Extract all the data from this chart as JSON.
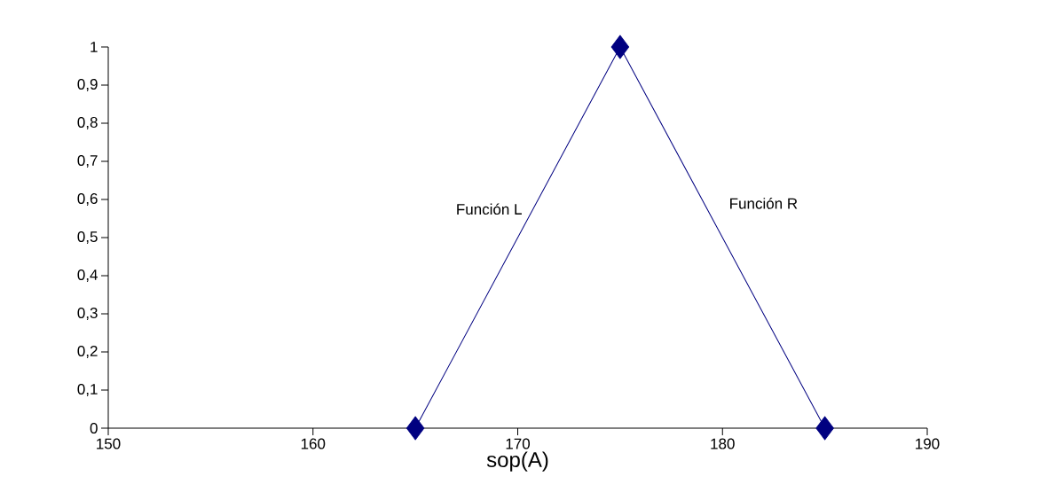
{
  "chart_data": {
    "type": "line",
    "xlabel": "sop(A)",
    "x": [
      165,
      175,
      185
    ],
    "series": [
      {
        "color": "#000080",
        "values": [
          0,
          1,
          0
        ]
      }
    ],
    "xlim": [
      150,
      190
    ],
    "xticks": [
      150,
      160,
      170,
      180,
      190
    ],
    "ylim": [
      0,
      1
    ],
    "yticks": [
      0,
      {
        "value": 0.1,
        "label": "0,1"
      },
      {
        "value": 0.2,
        "label": "0,2"
      },
      {
        "value": 0.3,
        "label": "0,3"
      },
      {
        "value": 0.4,
        "label": "0,4"
      },
      {
        "value": 0.5,
        "label": "0,5"
      },
      {
        "value": 0.6,
        "label": "0,6"
      },
      {
        "value": 0.7,
        "label": "0,7"
      },
      {
        "value": 0.8,
        "label": "0,8"
      },
      {
        "value": 0.9,
        "label": "0,9"
      },
      1
    ],
    "annotations": [
      "Función L",
      "Función R"
    ],
    "marker": "diamond",
    "line_style": "solid",
    "grid": false
  }
}
